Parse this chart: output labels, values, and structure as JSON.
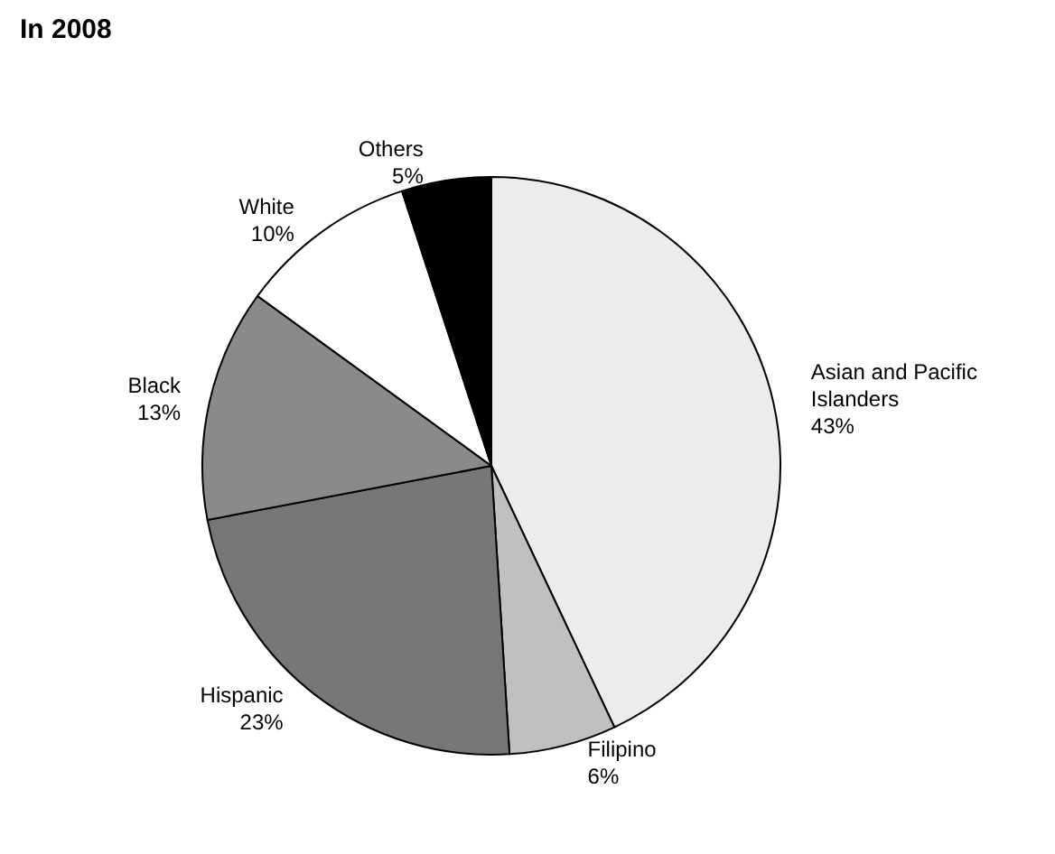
{
  "chart_data": {
    "type": "pie",
    "title": "In 2008",
    "categories": [
      "Asian and Pacific Islanders",
      "Filipino",
      "Hispanic",
      "Black",
      "White",
      "Others"
    ],
    "values": [
      43,
      6,
      23,
      13,
      10,
      5
    ],
    "value_labels": [
      "43%",
      "6%",
      "23%",
      "13%",
      "10%",
      "5%"
    ],
    "colors": [
      "#ececec",
      "#c0c0c0",
      "#777777",
      "#8a8a8a",
      "#ffffff",
      "#000000"
    ],
    "legend": false
  }
}
